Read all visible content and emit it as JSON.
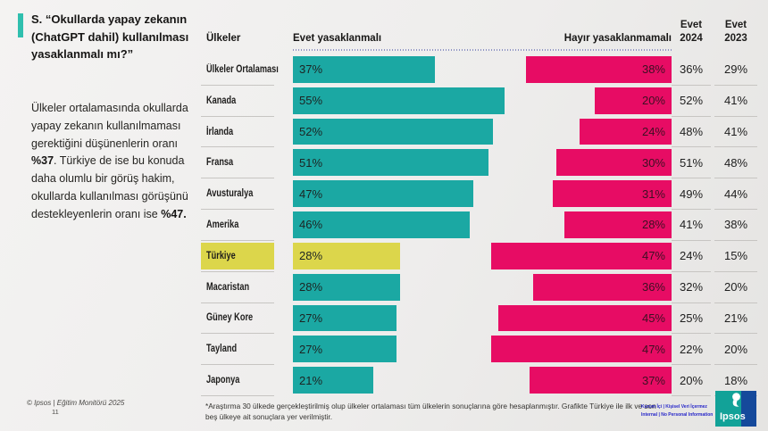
{
  "sidebar": {
    "question_title": "S. “Okullarda yapay zekanın (ChatGPT dahil) kullanılması yasaklanmalı mı?”",
    "commentary": {
      "part1": "Ülkeler ortalamasında okullarda yapay zekanın kullanılmaması gerektiğini düşünenlerin oranı ",
      "bold1": "%37",
      "part2": ". Türkiye de ise bu konuda daha olumlu bir görüş hakim, okullarda kullanılması görüşünü destekleyenlerin oranı ise ",
      "bold2": "%47."
    }
  },
  "chart": {
    "header": {
      "countries": "Ülkeler",
      "yes": "Evet yasaklanmalı",
      "no": "Hayır yasaklanmamalı",
      "col2024_line1": "Evet",
      "col2024_line2": "2024",
      "col2023_line1": "Evet",
      "col2023_line2": "2023"
    }
  },
  "chart_data": {
    "type": "bar",
    "orientation": "diverging-horizontal",
    "title": "S. “Okullarda yapay zekanın (ChatGPT dahil) kullanılması yasaklanmalı mı?”",
    "categories": [
      "Ülkeler Ortalaması",
      "Kanada",
      "İrlanda",
      "Fransa",
      "Avusturalya",
      "Amerika",
      "Türkiye",
      "Macaristan",
      "Güney Kore",
      "Tayland",
      "Japonya"
    ],
    "series": [
      {
        "name": "Evet yasaklanmalı",
        "color": "#1BA8A3",
        "values": [
          37,
          55,
          52,
          51,
          47,
          46,
          28,
          28,
          27,
          27,
          21
        ]
      },
      {
        "name": "Hayır yasaklanmamalı",
        "color": "#E70C64",
        "values": [
          38,
          20,
          24,
          30,
          31,
          28,
          47,
          36,
          45,
          47,
          37
        ]
      }
    ],
    "extra_columns": [
      {
        "label": "Evet 2024",
        "values": [
          36,
          52,
          48,
          51,
          49,
          41,
          24,
          32,
          25,
          22,
          20
        ]
      },
      {
        "label": "Evet 2023",
        "values": [
          29,
          41,
          41,
          48,
          44,
          38,
          15,
          20,
          21,
          20,
          18
        ]
      }
    ],
    "highlight_category": "Türkiye",
    "highlight_color": "#DCD64B",
    "value_suffix": "%",
    "xlim": [
      0,
      60
    ],
    "grid": false,
    "legend_position": "top"
  },
  "footer": {
    "copyright": "© Ipsos | Eğitim Monitörü 2025",
    "page_number": "11",
    "footnote": "*Araştırma 30 ülkede gerçekleştirilmiş olup ülkeler ortalaması tüm ülkelerin sonuçlarına göre hesaplanmıştır. Grafikte Türkiye ile ilk ve son beş ülkeye ait sonuçlara yer verilmiştir.",
    "classification_line1": "Kurum İçi | Kişisel Veri İçermez",
    "classification_line2": "Internal | No Personal Information",
    "logo_text": "Ipsos"
  }
}
